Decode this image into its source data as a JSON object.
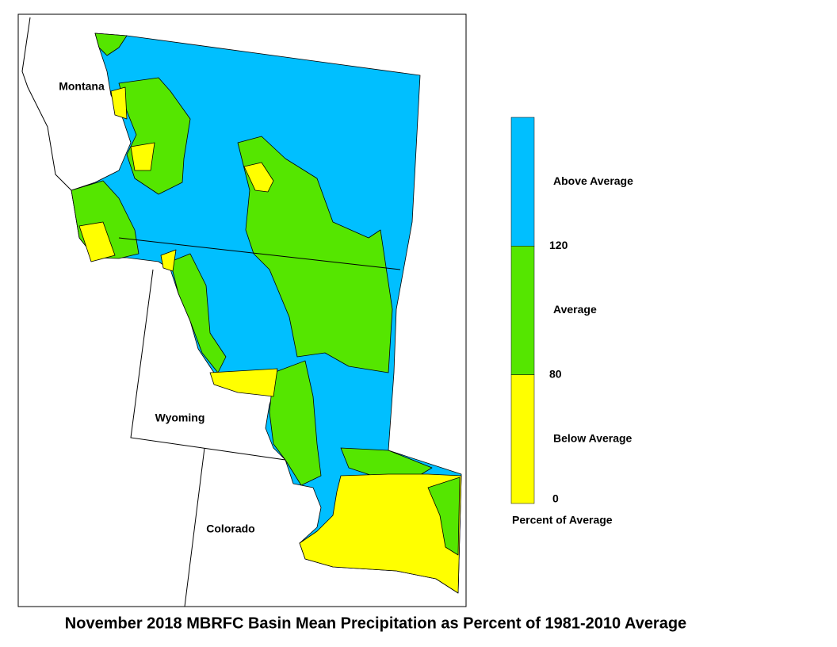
{
  "title": "November 2018 MBRFC Basin Mean Precipitation as Percent of 1981-2010 Average",
  "map": {
    "state_labels": [
      "Montana",
      "Wyoming",
      "Colorado"
    ]
  },
  "legend": {
    "classes": [
      {
        "label": "Above Average",
        "color": "#00bfff"
      },
      {
        "label": "Average",
        "color": "#55e600"
      },
      {
        "label": "Below Average",
        "color": "#ffff00"
      }
    ],
    "breaks": [
      120,
      80,
      0
    ],
    "caption": "Percent of Average"
  }
}
